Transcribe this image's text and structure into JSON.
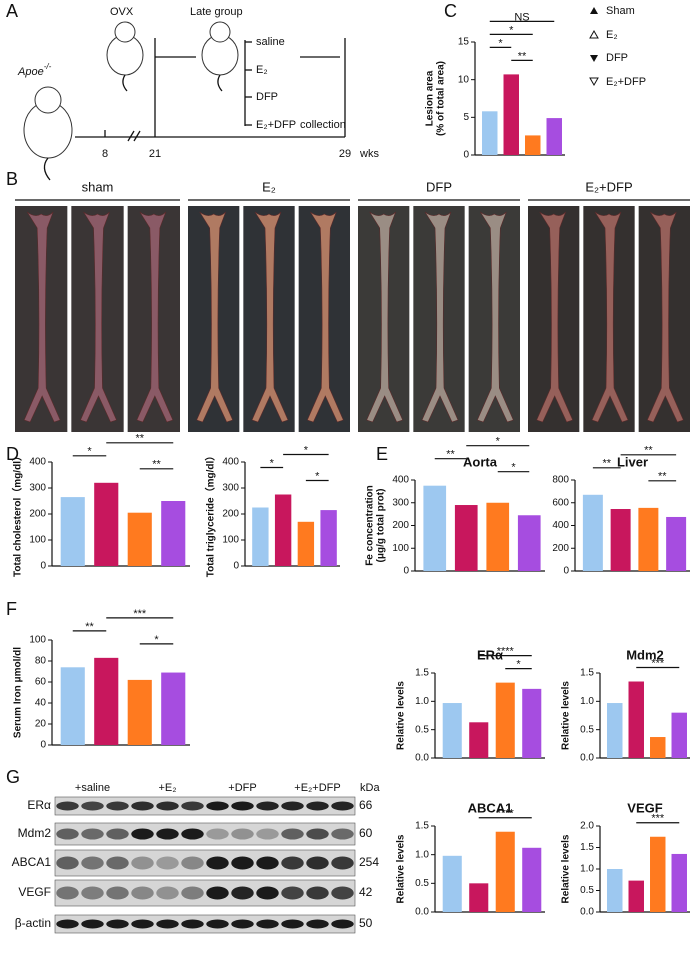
{
  "panels": {
    "A": "A",
    "B": "B",
    "C": "C",
    "D": "D",
    "E": "E",
    "F": "F",
    "G": "G"
  },
  "timeline": {
    "strain": "Apoe",
    "genotype": "-/-",
    "ovx": "OVX",
    "group": "Late group",
    "treatments": [
      "saline",
      "E₂",
      "DFP",
      "E₂+DFP"
    ],
    "collection": "collection",
    "weeks": [
      "8",
      "21",
      "29"
    ],
    "unit": "wks"
  },
  "groups": [
    {
      "name": "Sham",
      "color": "#9dc8f0"
    },
    {
      "name": "E₂",
      "color": "#c8175d"
    },
    {
      "name": "DFP",
      "color": "#ff7a1f"
    },
    {
      "name": "E₂+DFP",
      "color": "#a64de0"
    }
  ],
  "photos": {
    "groups": [
      "sham",
      "E₂",
      "DFP",
      "E₂+DFP"
    ]
  },
  "blot": {
    "lanes": [
      "+saline",
      "+E₂",
      "+DFP",
      "+E₂+DFP"
    ],
    "unit": "kDa",
    "proteins": [
      {
        "name": "ERα",
        "kda": "66"
      },
      {
        "name": "Mdm2",
        "kda": "60"
      },
      {
        "name": "ABCA1",
        "kda": "254"
      },
      {
        "name": "VEGF",
        "kda": "42"
      },
      {
        "name": "β-actin",
        "kda": "50"
      }
    ]
  },
  "chart_data": [
    {
      "type": "bar",
      "ylabel": [
        "Lesion area",
        "(% of total area)"
      ],
      "values": [
        5.8,
        10.7,
        2.6,
        4.9
      ],
      "ylim": [
        0,
        15
      ],
      "yticks": [
        0,
        5,
        10,
        15
      ],
      "annotations": [
        {
          "label": "**",
          "groups": [
            1,
            2
          ]
        },
        {
          "label": "*",
          "groups": [
            0,
            1
          ]
        },
        {
          "label": "*",
          "groups": [
            0,
            2
          ]
        },
        {
          "label": "NS",
          "groups": [
            0,
            3
          ]
        }
      ]
    },
    {
      "type": "bar",
      "ylabel": [
        "Total cholesterol（mg/dl）"
      ],
      "values": [
        265,
        320,
        205,
        250
      ],
      "ylim": [
        0,
        400
      ],
      "yticks": [
        0,
        100,
        200,
        300,
        400
      ],
      "annotations": [
        {
          "label": "**",
          "groups": [
            2,
            3
          ]
        },
        {
          "label": "*",
          "groups": [
            0,
            1
          ]
        },
        {
          "label": "**",
          "groups": [
            1,
            3
          ]
        }
      ]
    },
    {
      "type": "bar",
      "ylabel": [
        "Total triglyceride（mg/dl）"
      ],
      "values": [
        225,
        275,
        170,
        215
      ],
      "ylim": [
        0,
        400
      ],
      "yticks": [
        0,
        100,
        200,
        300,
        400
      ],
      "annotations": [
        {
          "label": "*",
          "groups": [
            2,
            3
          ]
        },
        {
          "label": "*",
          "groups": [
            0,
            1
          ]
        },
        {
          "label": "*",
          "groups": [
            1,
            3
          ]
        }
      ]
    },
    {
      "type": "bar",
      "title": "Aorta",
      "ylabel": [
        "Fe concentration",
        "(μg/g total prot)"
      ],
      "values": [
        375,
        290,
        300,
        245
      ],
      "ylim": [
        0,
        400
      ],
      "yticks": [
        0,
        100,
        200,
        300,
        400
      ],
      "annotations": [
        {
          "label": "*",
          "groups": [
            2,
            3
          ]
        },
        {
          "label": "**",
          "groups": [
            0,
            1
          ]
        },
        {
          "label": "*",
          "groups": [
            1,
            3
          ]
        }
      ]
    },
    {
      "type": "bar",
      "title": "Liver",
      "values": [
        670,
        545,
        555,
        475
      ],
      "ylim": [
        0,
        800
      ],
      "yticks": [
        0,
        200,
        400,
        600,
        800
      ],
      "annotations": [
        {
          "label": "**",
          "groups": [
            2,
            3
          ]
        },
        {
          "label": "**",
          "groups": [
            0,
            1
          ]
        },
        {
          "label": "**",
          "groups": [
            1,
            3
          ]
        }
      ]
    },
    {
      "type": "bar",
      "ylabel": [
        "Serum Iron μmol/dl"
      ],
      "values": [
        74,
        83,
        62,
        69
      ],
      "ylim": [
        0,
        100
      ],
      "yticks": [
        0,
        20,
        40,
        60,
        80,
        100
      ],
      "annotations": [
        {
          "label": "*",
          "groups": [
            2,
            3
          ]
        },
        {
          "label": "**",
          "groups": [
            0,
            1
          ]
        },
        {
          "label": "***",
          "groups": [
            1,
            3
          ]
        }
      ]
    },
    {
      "type": "bar",
      "title": "ERα",
      "ylabel": [
        "Relative levels"
      ],
      "values": [
        0.97,
        0.63,
        1.33,
        1.22
      ],
      "ylim": [
        0,
        1.5
      ],
      "yticks": [
        {
          "value": 0,
          "label": "0.0"
        },
        {
          "value": 0.5,
          "label": "0.5"
        },
        {
          "value": 1,
          "label": "1.0"
        },
        {
          "value": 1.5,
          "label": "1.5"
        }
      ],
      "annotations": [
        {
          "label": "*",
          "groups": [
            2,
            3
          ]
        },
        {
          "label": "****",
          "groups": [
            1,
            3
          ]
        }
      ]
    },
    {
      "type": "bar",
      "title": "Mdm2",
      "ylabel": [
        "Relative levels"
      ],
      "values": [
        0.97,
        1.35,
        0.37,
        0.8
      ],
      "ylim": [
        0,
        1.5
      ],
      "yticks": [
        {
          "value": 0,
          "label": "0.0"
        },
        {
          "value": 0.5,
          "label": "0.5"
        },
        {
          "value": 1,
          "label": "1.0"
        },
        {
          "value": 1.5,
          "label": "1.5"
        }
      ],
      "annotations": [
        {
          "label": "***",
          "groups": [
            1,
            3
          ]
        }
      ]
    },
    {
      "type": "bar",
      "title": "ABCA1",
      "ylabel": [
        "Relative levels"
      ],
      "values": [
        0.98,
        0.5,
        1.4,
        1.12
      ],
      "ylim": [
        0,
        1.5
      ],
      "yticks": [
        {
          "value": 0,
          "label": "0.0"
        },
        {
          "value": 0.5,
          "label": "0.5"
        },
        {
          "value": 1,
          "label": "1.0"
        },
        {
          "value": 1.5,
          "label": "1.5"
        }
      ],
      "annotations": [
        {
          "label": "****",
          "groups": [
            1,
            3
          ]
        }
      ]
    },
    {
      "type": "bar",
      "title": "VEGF",
      "ylabel": [
        "Relative levels"
      ],
      "values": [
        1.0,
        0.73,
        1.75,
        1.35
      ],
      "ylim": [
        0,
        2
      ],
      "yticks": [
        {
          "value": 0,
          "label": "0.0"
        },
        {
          "value": 0.5,
          "label": "0.5"
        },
        {
          "value": 1,
          "label": "1.0"
        },
        {
          "value": 1.5,
          "label": "1.5"
        },
        {
          "value": 2,
          "label": "2.0"
        }
      ],
      "annotations": [
        {
          "label": "***",
          "groups": [
            1,
            3
          ]
        }
      ]
    }
  ]
}
